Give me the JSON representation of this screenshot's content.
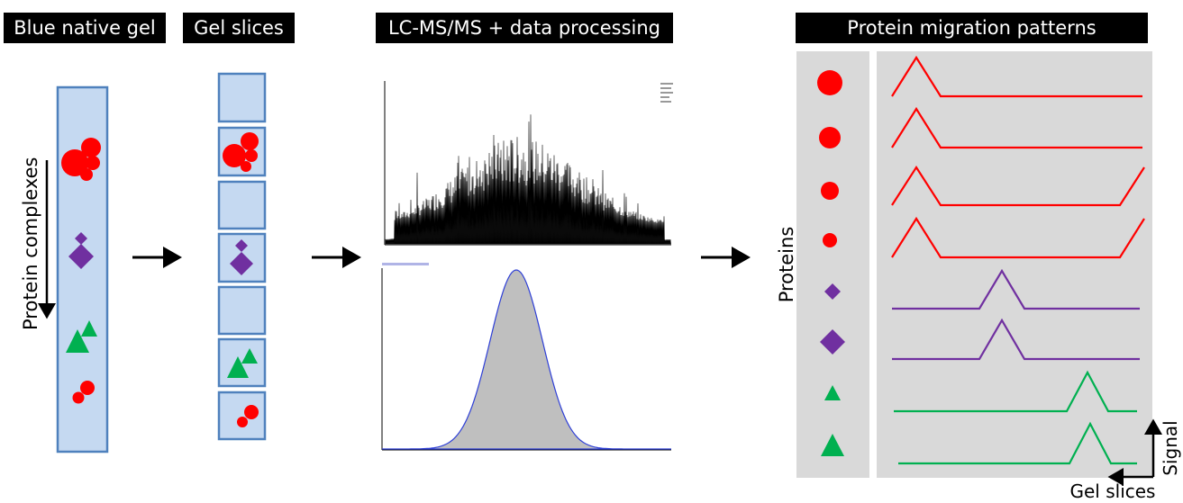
{
  "headers": {
    "gel": "Blue native gel",
    "slices": "Gel slices",
    "lcms": "LC-MS/MS + data processing",
    "patterns": "Protein migration patterns"
  },
  "labels": {
    "complexes": "Protein complexes",
    "proteins": "Proteins",
    "signal": "Signal",
    "gel_slices": "Gel slices"
  },
  "colors": {
    "red": "#ff0000",
    "purple": "#7030a0",
    "green": "#00b050",
    "gel_fill": "#c5d9f1",
    "gel_border": "#4f81bd",
    "panel_grey": "#d9d9d9"
  },
  "icons": [
    "right-arrow-icon",
    "down-arrow-icon",
    "red-circle-icon",
    "purple-diamond-icon",
    "green-triangle-icon"
  ]
}
